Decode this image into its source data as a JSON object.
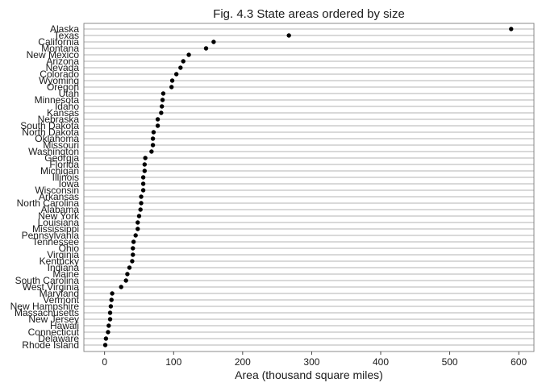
{
  "chart_data": {
    "type": "scatter",
    "title": "Fig. 4.3 State areas ordered by size",
    "xlabel": "Area (thousand square miles)",
    "ylabel": "",
    "xlim": [
      -30,
      622
    ],
    "xticks": [
      0,
      100,
      200,
      300,
      400,
      500,
      600
    ],
    "grid": "horizontal",
    "legend": "none",
    "point_color": "#000000",
    "categories": [
      "Alaska",
      "Texas",
      "California",
      "Montana",
      "New Mexico",
      "Arizona",
      "Nevada",
      "Colorado",
      "Wyoming",
      "Oregon",
      "Utah",
      "Minnesota",
      "Idaho",
      "Kansas",
      "Nebraska",
      "South Dakota",
      "North Dakota",
      "Oklahoma",
      "Missouri",
      "Washington",
      "Georgia",
      "Florida",
      "Michigan",
      "Illinois",
      "Iowa",
      "Wisconsin",
      "Arkansas",
      "North Carolina",
      "Alabama",
      "New York",
      "Louisiana",
      "Mississippi",
      "Pennsylvania",
      "Tennessee",
      "Ohio",
      "Virginia",
      "Kentucky",
      "Indiana",
      "Maine",
      "South Carolina",
      "West Virginia",
      "Maryland",
      "Vermont",
      "New Hampshire",
      "Massachusetts",
      "New Jersey",
      "Hawaii",
      "Connecticut",
      "Delaware",
      "Rhode Island"
    ],
    "values": [
      589,
      267,
      158,
      147,
      122,
      114,
      110,
      104,
      98,
      97,
      85,
      84,
      83,
      82,
      77,
      77,
      71,
      70,
      70,
      68,
      59,
      58,
      58,
      56,
      56,
      56,
      53,
      53,
      52,
      50,
      48,
      48,
      45,
      42,
      41,
      41,
      40,
      36,
      33,
      31,
      24,
      11,
      10,
      9,
      8,
      8,
      6,
      5,
      2,
      1
    ]
  }
}
